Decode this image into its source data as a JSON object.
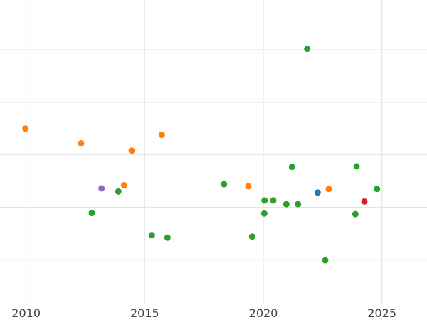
{
  "chart_data": {
    "type": "scatter",
    "title": "",
    "xlabel": "",
    "ylabel": "",
    "xlim": [
      2008.9,
      2026.9
    ],
    "ylim": [
      -0.35,
      5.45
    ],
    "x_ticks": [
      2010,
      2015,
      2020,
      2025
    ],
    "x_tick_labels": [
      "2010",
      "2015",
      "2020",
      "2025"
    ],
    "y_gridlines": [
      0.5,
      1.5,
      2.5,
      3.5,
      4.5
    ],
    "grid": true,
    "legend": "none",
    "colors": {
      "blue": "#1f77b4",
      "orange": "#ff7f0e",
      "green": "#2ca02c",
      "red": "#d62728",
      "purple": "#9467bd",
      "grid": "#e6e6e6",
      "tick_text": "#444444"
    },
    "points": [
      {
        "x": 2009.97,
        "y": 3.0,
        "color": "orange"
      },
      {
        "x": 2012.32,
        "y": 2.72,
        "color": "orange"
      },
      {
        "x": 2012.77,
        "y": 1.39,
        "color": "green"
      },
      {
        "x": 2013.18,
        "y": 1.86,
        "color": "purple"
      },
      {
        "x": 2013.89,
        "y": 1.8,
        "color": "green"
      },
      {
        "x": 2014.13,
        "y": 1.92,
        "color": "orange"
      },
      {
        "x": 2014.45,
        "y": 2.58,
        "color": "orange"
      },
      {
        "x": 2015.3,
        "y": 0.97,
        "color": "green"
      },
      {
        "x": 2015.72,
        "y": 2.88,
        "color": "orange"
      },
      {
        "x": 2015.96,
        "y": 0.92,
        "color": "green"
      },
      {
        "x": 2018.34,
        "y": 1.94,
        "color": "green"
      },
      {
        "x": 2019.37,
        "y": 1.9,
        "color": "orange"
      },
      {
        "x": 2019.53,
        "y": 0.94,
        "color": "green"
      },
      {
        "x": 2020.04,
        "y": 1.38,
        "color": "green"
      },
      {
        "x": 2020.05,
        "y": 1.63,
        "color": "green"
      },
      {
        "x": 2020.42,
        "y": 1.63,
        "color": "green"
      },
      {
        "x": 2020.97,
        "y": 1.56,
        "color": "green"
      },
      {
        "x": 2021.21,
        "y": 2.27,
        "color": "green"
      },
      {
        "x": 2021.46,
        "y": 1.56,
        "color": "green"
      },
      {
        "x": 2021.85,
        "y": 4.52,
        "color": "green"
      },
      {
        "x": 2022.29,
        "y": 1.78,
        "color": "blue"
      },
      {
        "x": 2022.61,
        "y": 0.49,
        "color": "green"
      },
      {
        "x": 2022.76,
        "y": 1.85,
        "color": "orange"
      },
      {
        "x": 2023.88,
        "y": 1.37,
        "color": "green"
      },
      {
        "x": 2023.93,
        "y": 2.28,
        "color": "green"
      },
      {
        "x": 2024.26,
        "y": 1.61,
        "color": "red"
      },
      {
        "x": 2024.79,
        "y": 1.85,
        "color": "green"
      }
    ]
  }
}
